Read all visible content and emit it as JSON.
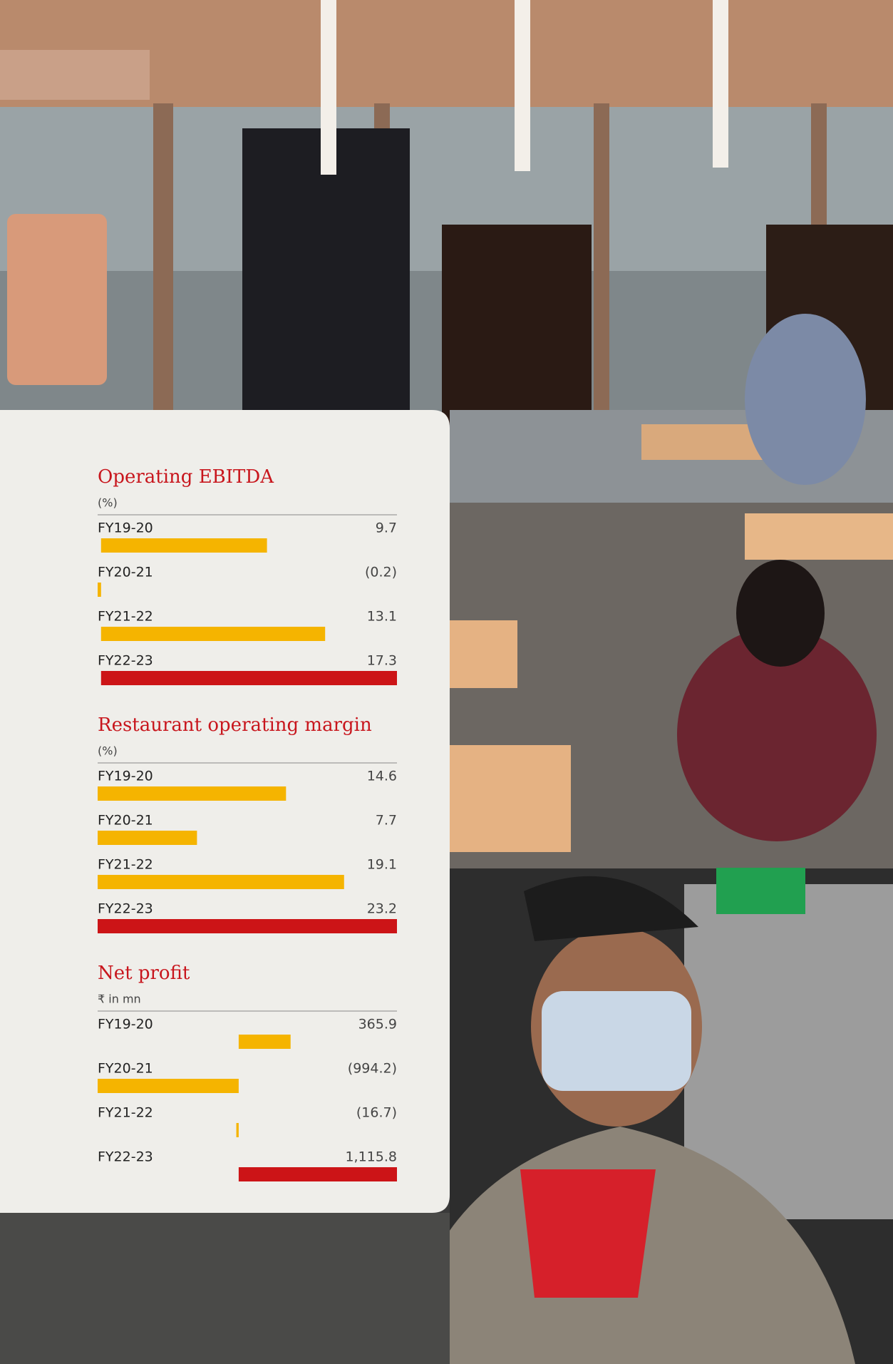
{
  "chart_data": [
    {
      "type": "bar",
      "orientation": "horizontal",
      "title": "Operating EBITDA",
      "subtitle": "(%)",
      "categories": [
        "FY19-20",
        "FY20-21",
        "FY21-22",
        "FY22-23"
      ],
      "values": [
        9.7,
        -0.2,
        13.1,
        17.3
      ],
      "value_labels": [
        "9.7",
        "(0.2)",
        "13.1",
        "17.3"
      ],
      "colors": [
        "#f5b400",
        "#f5b400",
        "#f5b400",
        "#cc1417"
      ],
      "xlim": [
        -0.2,
        17.3
      ]
    },
    {
      "type": "bar",
      "orientation": "horizontal",
      "title": "Restaurant operating margin",
      "subtitle": "(%)",
      "categories": [
        "FY19-20",
        "FY20-21",
        "FY21-22",
        "FY22-23"
      ],
      "values": [
        14.6,
        7.7,
        19.1,
        23.2
      ],
      "value_labels": [
        "14.6",
        "7.7",
        "19.1",
        "23.2"
      ],
      "colors": [
        "#f5b400",
        "#f5b400",
        "#f5b400",
        "#cc1417"
      ],
      "xlim": [
        0,
        23.2
      ]
    },
    {
      "type": "bar",
      "orientation": "horizontal",
      "title": "Net profit",
      "subtitle": "₹ in mn",
      "categories": [
        "FY19-20",
        "FY20-21",
        "FY21-22",
        "FY22-23"
      ],
      "values": [
        365.9,
        -994.2,
        -16.7,
        1115.8
      ],
      "value_labels": [
        "365.9",
        "(994.2)",
        "(16.7)",
        "1,115.8"
      ],
      "colors": [
        "#f5b400",
        "#f5b400",
        "#f5b400",
        "#cc1417"
      ],
      "xlim": [
        -994.2,
        1115.8
      ]
    }
  ]
}
